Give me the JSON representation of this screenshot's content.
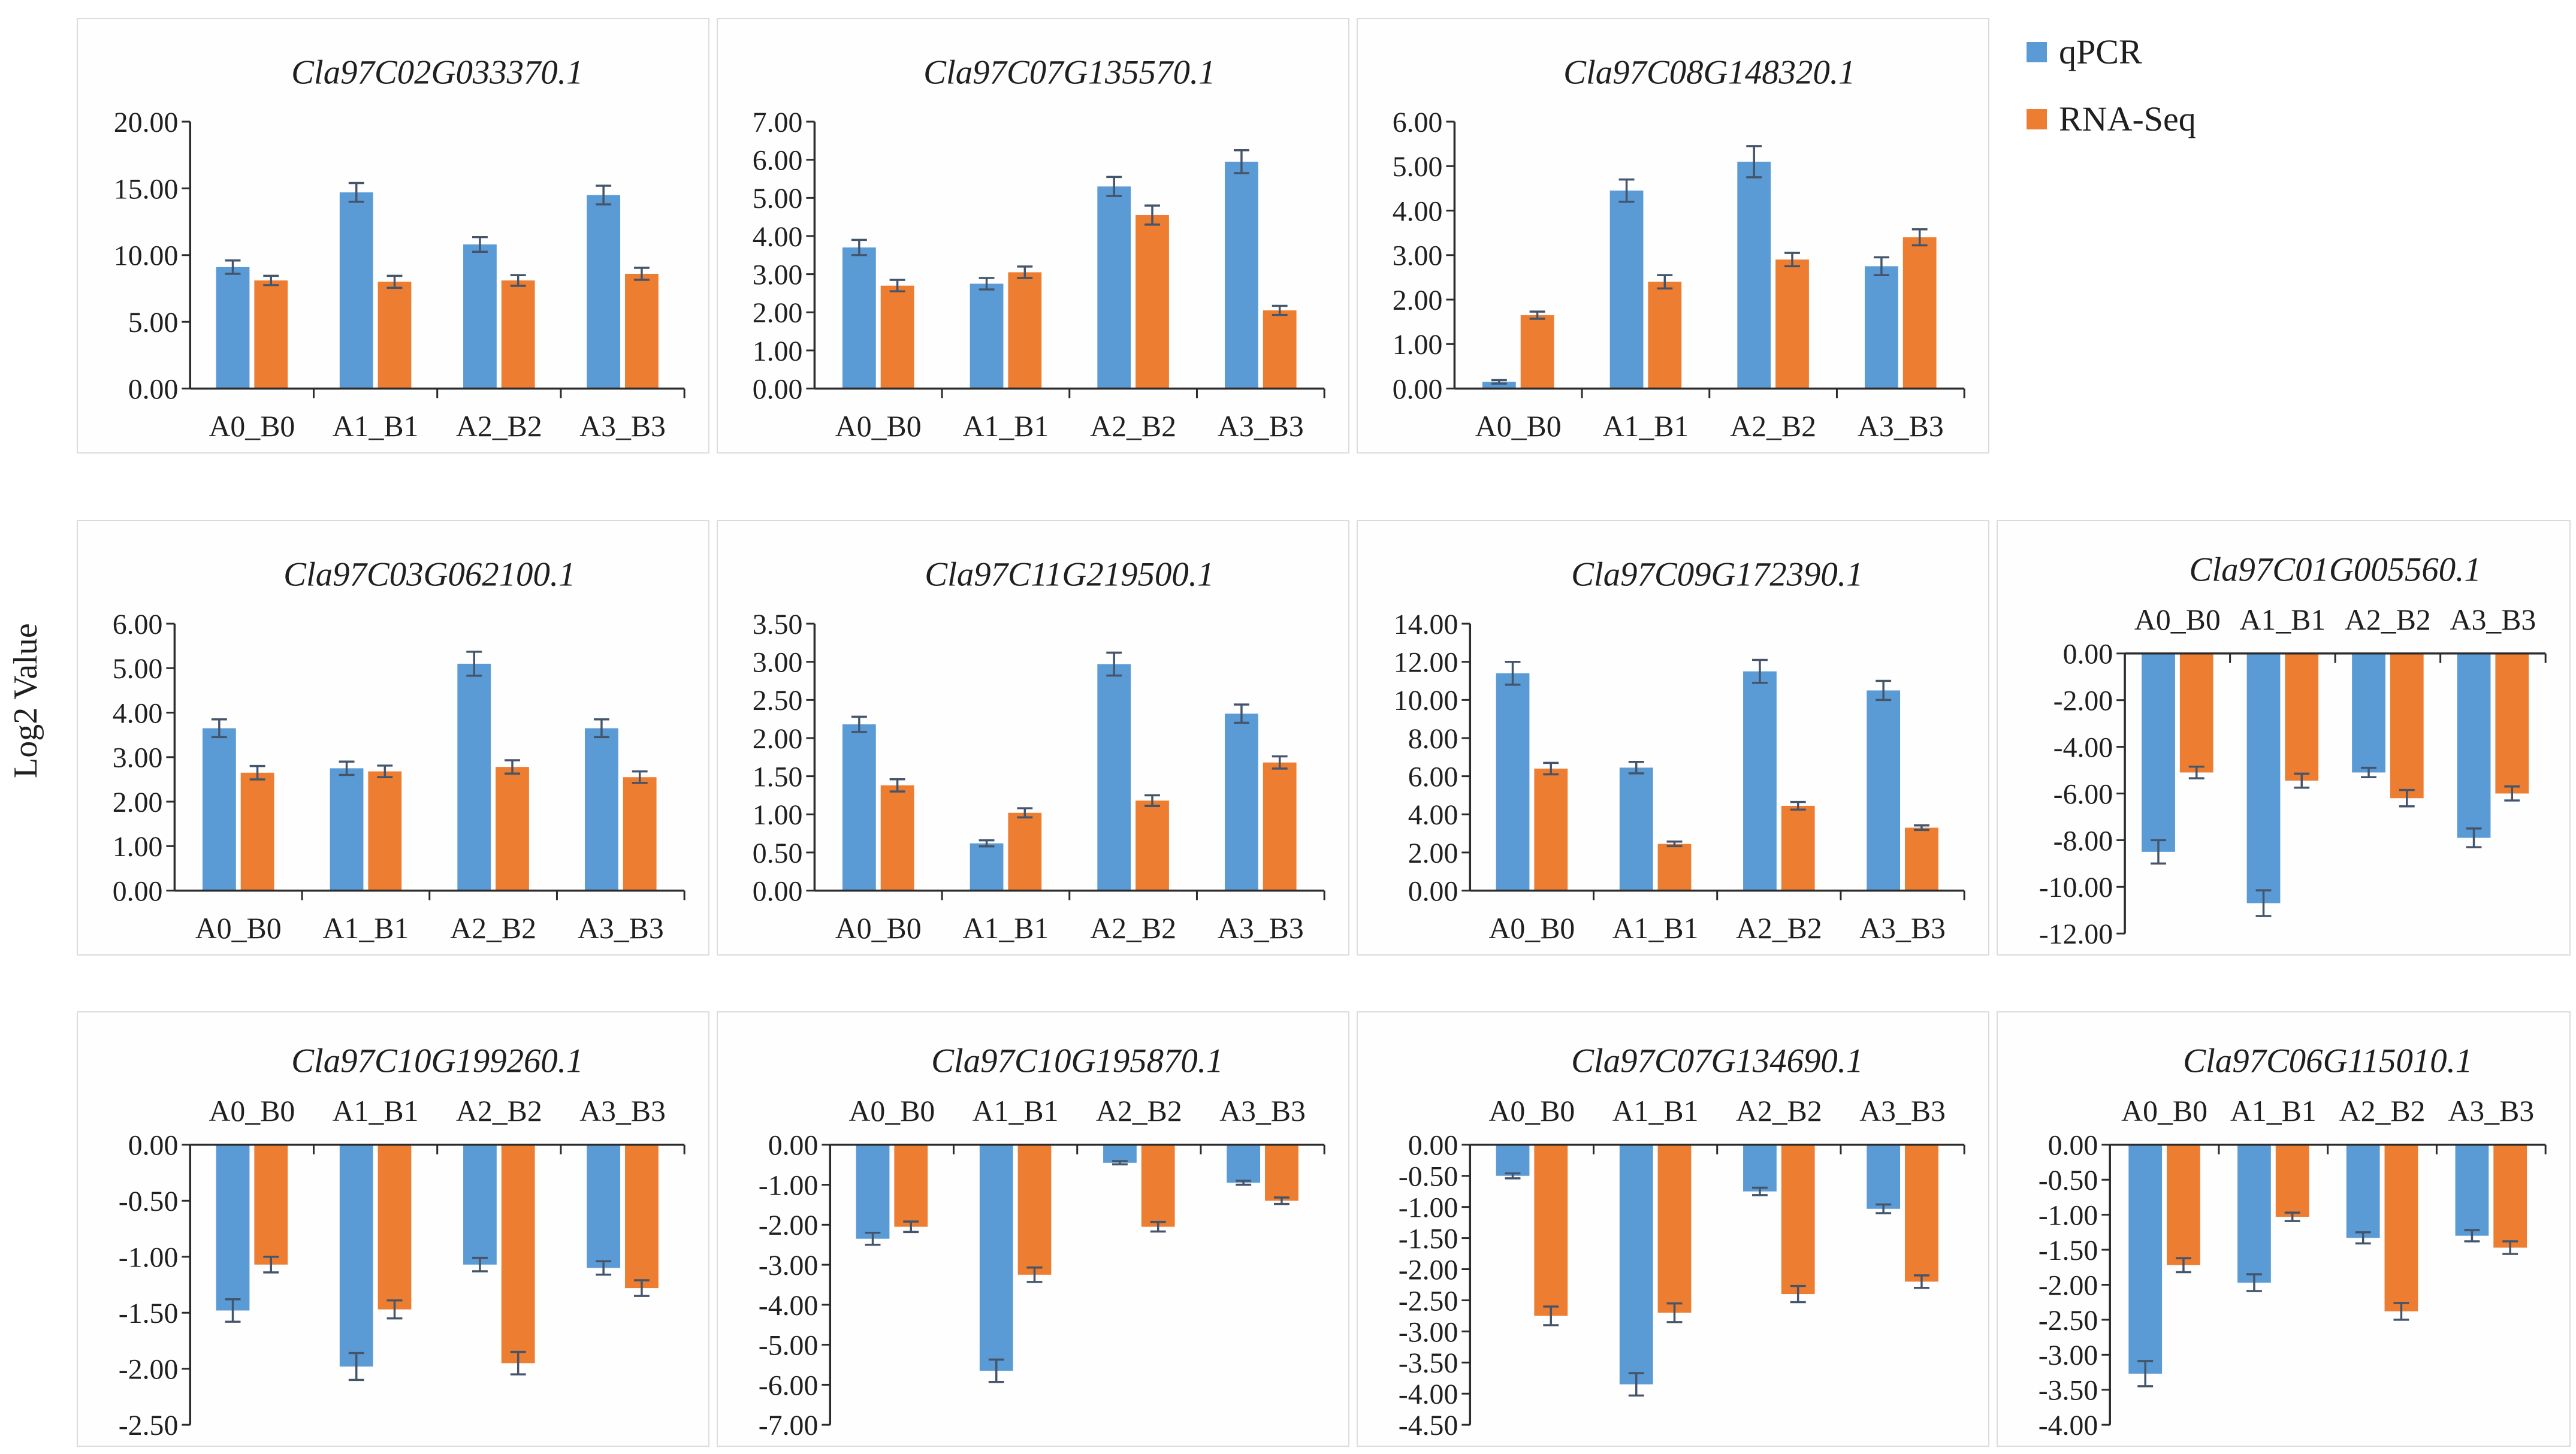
{
  "figure": {
    "y_axis_label": "Log2 Value",
    "colors": {
      "qpcr": "#5B9BD5",
      "rnaseq": "#ED7D31",
      "error_bar": "#44546A",
      "axis": "#2b2b2b",
      "panel_border": "#dcdcdc",
      "text": "#1f1f1f"
    },
    "legend": {
      "position": "top-right",
      "items": [
        {
          "label": "qPCR",
          "series": "qpcr"
        },
        {
          "label": "RNA-Seq",
          "series": "rnaseq"
        }
      ]
    }
  },
  "chart_data": [
    {
      "type": "bar",
      "title": "Cla97C02G033370.1",
      "panel": {
        "row": 1,
        "col": 1
      },
      "categories": [
        "A0_B0",
        "A1_B1",
        "A2_B2",
        "A3_B3"
      ],
      "ylim": [
        0,
        20
      ],
      "ystep": 5,
      "grid": false,
      "series": [
        {
          "name": "qPCR",
          "values": [
            9.1,
            14.7,
            10.8,
            14.5
          ],
          "errors": [
            0.5,
            0.7,
            0.55,
            0.7
          ]
        },
        {
          "name": "RNA-Seq",
          "values": [
            8.1,
            8.0,
            8.1,
            8.6
          ],
          "errors": [
            0.35,
            0.45,
            0.4,
            0.45
          ]
        }
      ]
    },
    {
      "type": "bar",
      "title": "Cla97C07G135570.1",
      "panel": {
        "row": 1,
        "col": 2
      },
      "categories": [
        "A0_B0",
        "A1_B1",
        "A2_B2",
        "A3_B3"
      ],
      "ylim": [
        0,
        7
      ],
      "ystep": 1,
      "grid": false,
      "series": [
        {
          "name": "qPCR",
          "values": [
            3.7,
            2.75,
            5.3,
            5.95
          ],
          "errors": [
            0.2,
            0.15,
            0.25,
            0.3
          ]
        },
        {
          "name": "RNA-Seq",
          "values": [
            2.7,
            3.05,
            4.55,
            2.05
          ],
          "errors": [
            0.15,
            0.15,
            0.25,
            0.12
          ]
        }
      ]
    },
    {
      "type": "bar",
      "title": "Cla97C08G148320.1",
      "panel": {
        "row": 1,
        "col": 3
      },
      "categories": [
        "A0_B0",
        "A1_B1",
        "A2_B2",
        "A3_B3"
      ],
      "ylim": [
        0,
        6
      ],
      "ystep": 1,
      "grid": false,
      "series": [
        {
          "name": "qPCR",
          "values": [
            0.15,
            4.45,
            5.1,
            2.75
          ],
          "errors": [
            0.04,
            0.25,
            0.35,
            0.2
          ]
        },
        {
          "name": "RNA-Seq",
          "values": [
            1.65,
            2.4,
            2.9,
            3.4
          ],
          "errors": [
            0.08,
            0.15,
            0.15,
            0.18
          ]
        }
      ]
    },
    {
      "type": "bar",
      "title": "Cla97C03G062100.1",
      "panel": {
        "row": 2,
        "col": 1
      },
      "categories": [
        "A0_B0",
        "A1_B1",
        "A2_B2",
        "A3_B3"
      ],
      "ylim": [
        0,
        6
      ],
      "ystep": 1,
      "grid": false,
      "series": [
        {
          "name": "qPCR",
          "values": [
            3.65,
            2.75,
            5.1,
            3.65
          ],
          "errors": [
            0.2,
            0.15,
            0.27,
            0.2
          ]
        },
        {
          "name": "RNA-Seq",
          "values": [
            2.65,
            2.68,
            2.78,
            2.55
          ],
          "errors": [
            0.15,
            0.13,
            0.15,
            0.13
          ]
        }
      ]
    },
    {
      "type": "bar",
      "title": "Cla97C11G219500.1",
      "panel": {
        "row": 2,
        "col": 2
      },
      "categories": [
        "A0_B0",
        "A1_B1",
        "A2_B2",
        "A3_B3"
      ],
      "ylim": [
        0,
        3.5
      ],
      "ystep": 0.5,
      "grid": false,
      "series": [
        {
          "name": "qPCR",
          "values": [
            2.18,
            0.62,
            2.97,
            2.32
          ],
          "errors": [
            0.1,
            0.04,
            0.15,
            0.12
          ]
        },
        {
          "name": "RNA-Seq",
          "values": [
            1.38,
            1.02,
            1.18,
            1.68
          ],
          "errors": [
            0.08,
            0.06,
            0.07,
            0.08
          ]
        }
      ]
    },
    {
      "type": "bar",
      "title": "Cla97C09G172390.1",
      "panel": {
        "row": 2,
        "col": 3
      },
      "categories": [
        "A0_B0",
        "A1_B1",
        "A2_B2",
        "A3_B3"
      ],
      "ylim": [
        0,
        14
      ],
      "ystep": 2,
      "grid": false,
      "series": [
        {
          "name": "qPCR",
          "values": [
            11.4,
            6.45,
            11.5,
            10.5
          ],
          "errors": [
            0.6,
            0.3,
            0.6,
            0.5
          ]
        },
        {
          "name": "RNA-Seq",
          "values": [
            6.4,
            2.45,
            4.45,
            3.3
          ],
          "errors": [
            0.3,
            0.12,
            0.2,
            0.12
          ]
        }
      ]
    },
    {
      "type": "bar",
      "title": "Cla97C01G005560.1",
      "panel": {
        "row": 2,
        "col": 4
      },
      "categories": [
        "A0_B0",
        "A1_B1",
        "A2_B2",
        "A3_B3"
      ],
      "ylim": [
        -12,
        0
      ],
      "ystep": 2,
      "grid": false,
      "series": [
        {
          "name": "qPCR",
          "values": [
            -8.5,
            -10.7,
            -5.1,
            -7.9
          ],
          "errors": [
            0.5,
            0.55,
            0.2,
            0.4
          ]
        },
        {
          "name": "RNA-Seq",
          "values": [
            -5.1,
            -5.45,
            -6.2,
            -6.0
          ],
          "errors": [
            0.25,
            0.3,
            0.35,
            0.3
          ]
        }
      ]
    },
    {
      "type": "bar",
      "title": "Cla97C10G199260.1",
      "panel": {
        "row": 3,
        "col": 1
      },
      "categories": [
        "A0_B0",
        "A1_B1",
        "A2_B2",
        "A3_B3"
      ],
      "ylim": [
        -2.5,
        0
      ],
      "ystep": 0.5,
      "grid": false,
      "series": [
        {
          "name": "qPCR",
          "values": [
            -1.48,
            -1.98,
            -1.07,
            -1.1
          ],
          "errors": [
            0.1,
            0.12,
            0.06,
            0.06
          ]
        },
        {
          "name": "RNA-Seq",
          "values": [
            -1.07,
            -1.47,
            -1.95,
            -1.28
          ],
          "errors": [
            0.07,
            0.08,
            0.1,
            0.07
          ]
        }
      ]
    },
    {
      "type": "bar",
      "title": "Cla97C10G195870.1",
      "panel": {
        "row": 3,
        "col": 2
      },
      "categories": [
        "A0_B0",
        "A1_B1",
        "A2_B2",
        "A3_B3"
      ],
      "ylim": [
        -7,
        0
      ],
      "ystep": 1,
      "grid": false,
      "series": [
        {
          "name": "qPCR",
          "values": [
            -2.35,
            -5.65,
            -0.45,
            -0.95
          ],
          "errors": [
            0.15,
            0.28,
            0.04,
            0.05
          ]
        },
        {
          "name": "RNA-Seq",
          "values": [
            -2.05,
            -3.25,
            -2.05,
            -1.4
          ],
          "errors": [
            0.13,
            0.18,
            0.12,
            0.08
          ]
        }
      ]
    },
    {
      "type": "bar",
      "title": "Cla97C07G134690.1",
      "panel": {
        "row": 3,
        "col": 3
      },
      "categories": [
        "A0_B0",
        "A1_B1",
        "A2_B2",
        "A3_B3"
      ],
      "ylim": [
        -4.5,
        0
      ],
      "ystep": 0.5,
      "grid": false,
      "series": [
        {
          "name": "qPCR",
          "values": [
            -0.5,
            -3.85,
            -0.75,
            -1.03
          ],
          "errors": [
            0.04,
            0.18,
            0.06,
            0.07
          ]
        },
        {
          "name": "RNA-Seq",
          "values": [
            -2.75,
            -2.7,
            -2.4,
            -2.2
          ],
          "errors": [
            0.15,
            0.15,
            0.13,
            0.1
          ]
        }
      ]
    },
    {
      "type": "bar",
      "title": "Cla97C06G115010.1",
      "panel": {
        "row": 3,
        "col": 4
      },
      "categories": [
        "A0_B0",
        "A1_B1",
        "A2_B2",
        "A3_B3"
      ],
      "ylim": [
        -4,
        0
      ],
      "ystep": 0.5,
      "grid": false,
      "series": [
        {
          "name": "qPCR",
          "values": [
            -3.27,
            -1.97,
            -1.33,
            -1.3
          ],
          "errors": [
            0.18,
            0.12,
            0.08,
            0.08
          ]
        },
        {
          "name": "RNA-Seq",
          "values": [
            -1.72,
            -1.03,
            -2.38,
            -1.47
          ],
          "errors": [
            0.1,
            0.06,
            0.12,
            0.09
          ]
        }
      ]
    }
  ]
}
